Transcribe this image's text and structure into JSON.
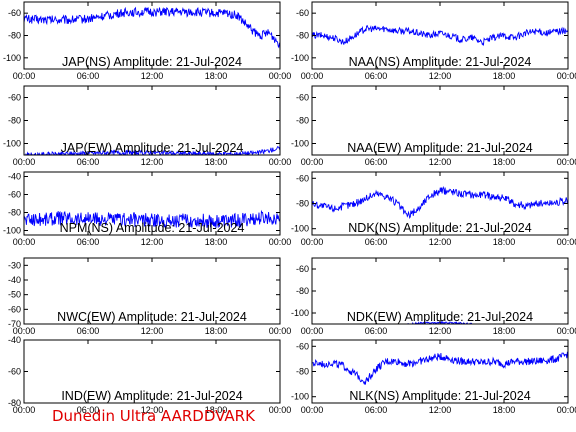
{
  "credit": "Dunedin Ultra AARDDVARK",
  "chart_data": [
    {
      "type": "line",
      "title": "JAP(NS) Amplitude: 21-Jul-2024",
      "xticks": [
        "00:00",
        "06:00",
        "12:00",
        "18:00",
        "00:00"
      ],
      "xlim": [
        0,
        24
      ],
      "ylim": [
        -110,
        -50
      ],
      "yticks": [
        -100,
        -80,
        -60
      ],
      "series": [
        {
          "x": [
            0,
            2,
            4,
            6,
            8,
            9,
            10,
            12,
            14,
            16,
            18,
            19,
            20,
            21,
            22,
            23,
            24
          ],
          "y": [
            -65,
            -66,
            -66,
            -65,
            -62,
            -60,
            -59,
            -59,
            -59,
            -59,
            -60,
            -60,
            -62,
            -72,
            -80,
            -78,
            -88
          ],
          "band": 4
        }
      ]
    },
    {
      "type": "line",
      "title": "NAA(NS) Amplitude: 21-Jul-2024",
      "xticks": [
        "00:00",
        "06:00",
        "12:00",
        "18:00",
        "00:00"
      ],
      "xlim": [
        0,
        24
      ],
      "ylim": [
        -110,
        -50
      ],
      "yticks": [
        -100,
        -80,
        -60
      ],
      "series": [
        {
          "x": [
            0,
            1,
            2,
            3,
            4,
            5,
            6,
            7,
            8,
            9,
            10,
            11,
            12,
            13,
            14,
            15,
            16,
            17,
            18,
            19,
            20,
            21,
            22,
            23,
            24
          ],
          "y": [
            -80,
            -80,
            -82,
            -86,
            -80,
            -74,
            -74,
            -74,
            -76,
            -76,
            -78,
            -80,
            -78,
            -80,
            -84,
            -82,
            -86,
            -82,
            -80,
            -82,
            -78,
            -76,
            -78,
            -76,
            -76
          ],
          "band": 3
        }
      ]
    },
    {
      "type": "line",
      "title": "JAP(EW) Amplitude: 21-Jul-2024",
      "xticks": [
        "00:00",
        "06:00",
        "12:00",
        "18:00",
        "00:00"
      ],
      "xlim": [
        0,
        24
      ],
      "ylim": [
        -110,
        -50
      ],
      "yticks": [
        -100,
        -80,
        -60
      ],
      "series": [
        {
          "x": [
            0,
            4,
            8,
            12,
            16,
            20,
            22,
            23,
            24
          ],
          "y": [
            -110,
            -109,
            -108,
            -108,
            -109,
            -109,
            -108,
            -106,
            -104
          ],
          "band": 2
        }
      ]
    },
    {
      "type": "line",
      "title": "NAA(EW) Amplitude: 21-Jul-2024",
      "xticks": [
        "00:00",
        "06:00",
        "12:00",
        "18:00",
        "00:00"
      ],
      "xlim": [
        0,
        24
      ],
      "ylim": [
        -110,
        -50
      ],
      "yticks": [
        -100,
        -80,
        -60
      ],
      "series": []
    },
    {
      "type": "line",
      "title": "NPM(NS) Amplitude: 21-Jul-2024",
      "xticks": [
        "00:00",
        "06:00",
        "12:00",
        "18:00",
        "00:00"
      ],
      "xlim": [
        0,
        24
      ],
      "ylim": [
        -105,
        -35
      ],
      "yticks": [
        -100,
        -80,
        -60,
        -40
      ],
      "series": [
        {
          "x": [
            0,
            2,
            4,
            6,
            8,
            10,
            12,
            14,
            16,
            18,
            20,
            22,
            24
          ],
          "y": [
            -88,
            -87,
            -86,
            -87,
            -88,
            -88,
            -89,
            -89,
            -89,
            -90,
            -89,
            -87,
            -85
          ],
          "band": 8
        }
      ]
    },
    {
      "type": "line",
      "title": "NDK(NS) Amplitude: 21-Jul-2024",
      "xticks": [
        "00:00",
        "06:00",
        "12:00",
        "18:00",
        "00:00"
      ],
      "xlim": [
        0,
        24
      ],
      "ylim": [
        -105,
        -55
      ],
      "yticks": [
        -100,
        -80,
        -60
      ],
      "series": [
        {
          "x": [
            0,
            1,
            2,
            3,
            4,
            5,
            6,
            7,
            8,
            9,
            10,
            11,
            12,
            13,
            14,
            15,
            16,
            17,
            18,
            19,
            20,
            21,
            22,
            23,
            24
          ],
          "y": [
            -80,
            -82,
            -84,
            -82,
            -80,
            -76,
            -72,
            -74,
            -80,
            -90,
            -84,
            -74,
            -70,
            -70,
            -72,
            -73,
            -73,
            -74,
            -76,
            -80,
            -82,
            -80,
            -80,
            -79,
            -78
          ],
          "band": 3
        }
      ]
    },
    {
      "type": "line",
      "title": "NWC(EW) Amplitude: 21-Jul-2024",
      "xticks": [
        "00:00",
        "06:00",
        "12:00",
        "18:00",
        "00:00"
      ],
      "xlim": [
        0,
        24
      ],
      "ylim": [
        -70,
        -25
      ],
      "yticks": [
        -70,
        -60,
        -50,
        -40,
        -30
      ],
      "series": []
    },
    {
      "type": "line",
      "title": "NDK(EW) Amplitude: 21-Jul-2024",
      "xticks": [
        "00:00",
        "06:00",
        "12:00",
        "18:00",
        "00:00"
      ],
      "xlim": [
        0,
        24
      ],
      "ylim": [
        -110,
        -50
      ],
      "yticks": [
        -100,
        -80,
        -60
      ],
      "series": [
        {
          "x": [
            9,
            11,
            13,
            15
          ],
          "y": [
            -110,
            -109,
            -109,
            -110
          ],
          "band": 1
        }
      ]
    },
    {
      "type": "line",
      "title": "IND(EW) Amplitude: 21-Jul-2024",
      "xticks": [
        "00:00",
        "06:00",
        "12:00",
        "18:00",
        "00:00"
      ],
      "xlim": [
        0,
        24
      ],
      "ylim": [
        -80,
        -40
      ],
      "yticks": [
        -80,
        -60,
        -40
      ],
      "series": []
    },
    {
      "type": "line",
      "title": "NLK(NS) Amplitude: 21-Jul-2024",
      "xticks": [
        "00:00",
        "06:00",
        "12:00",
        "18:00",
        "00:00"
      ],
      "xlim": [
        0,
        24
      ],
      "ylim": [
        -105,
        -55
      ],
      "yticks": [
        -100,
        -80,
        -60
      ],
      "series": [
        {
          "x": [
            0,
            1,
            2,
            3,
            4,
            5,
            6,
            7,
            8,
            9,
            10,
            11,
            12,
            13,
            14,
            15,
            16,
            17,
            18,
            19,
            20,
            21,
            22,
            23,
            24
          ],
          "y": [
            -74,
            -74,
            -73,
            -76,
            -82,
            -88,
            -78,
            -72,
            -72,
            -74,
            -72,
            -70,
            -68,
            -70,
            -72,
            -72,
            -73,
            -72,
            -74,
            -72,
            -72,
            -72,
            -71,
            -70,
            -66
          ],
          "band": 3
        }
      ]
    }
  ]
}
